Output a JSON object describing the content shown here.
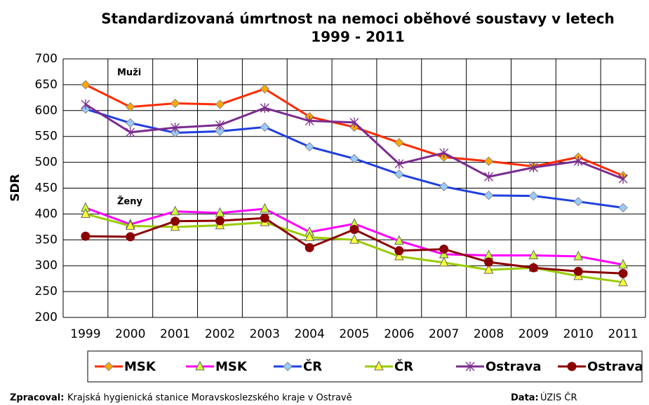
{
  "chart_data": {
    "type": "line",
    "title": [
      "Standardizovaná úmrtnost na nemoci  oběhové soustavy v letech",
      "1999 - 2011"
    ],
    "y_label": "SDR",
    "annotations": [
      "Muži",
      "Ženy"
    ],
    "categories": [
      "1999",
      "2000",
      "2001",
      "2002",
      "2003",
      "2004",
      "2005",
      "2006",
      "2007",
      "2008",
      "2009",
      "2010",
      "2011"
    ],
    "series": [
      {
        "name": "MSK",
        "color": "#ff2a00",
        "marker": "diamond",
        "marker_color": "#ffa800",
        "values": [
          650,
          607,
          614,
          612,
          642,
          588,
          568,
          538,
          510,
          502,
          492,
          510,
          474
        ]
      },
      {
        "name": "MSK",
        "color": "#ff00ff",
        "marker": "triangle",
        "marker_color": "#ccff33",
        "values": [
          412,
          380,
          405,
          402,
          410,
          365,
          381,
          348,
          322,
          320,
          320,
          318,
          302
        ]
      },
      {
        "name": "ČR",
        "color": "#1f3fe0",
        "marker": "diamond",
        "marker_color": "#99ccff",
        "values": [
          603,
          576,
          557,
          560,
          568,
          530,
          507,
          477,
          453,
          436,
          435,
          424,
          412
        ]
      },
      {
        "name": "ČR",
        "color": "#99cc00",
        "marker": "triangle",
        "marker_color": "#ffff33",
        "values": [
          400,
          377,
          375,
          378,
          384,
          355,
          350,
          318,
          306,
          292,
          296,
          280,
          268
        ]
      },
      {
        "name": "Ostrava",
        "color": "#7b2c8e",
        "marker": "star",
        "marker_color": "#7b2c8e",
        "values": [
          612,
          558,
          567,
          572,
          605,
          580,
          577,
          497,
          518,
          472,
          490,
          502,
          468
        ]
      },
      {
        "name": "Ostrava",
        "color": "#8b0000",
        "marker": "circle",
        "marker_color": "#8b0000",
        "values": [
          357,
          356,
          386,
          387,
          392,
          335,
          370,
          329,
          332,
          307,
          296,
          289,
          285
        ]
      }
    ],
    "ylim": [
      200,
      700
    ],
    "yticks": [
      200,
      250,
      300,
      350,
      400,
      450,
      500,
      550,
      600,
      650,
      700
    ],
    "grid": true
  },
  "footer": {
    "left_label": "Zpracoval:",
    "left_text": "Krajská hygienická stanice Moravskoslezského kraje v Ostravě",
    "right_label": "Data:",
    "right_text": "ÚZIS ČR"
  }
}
